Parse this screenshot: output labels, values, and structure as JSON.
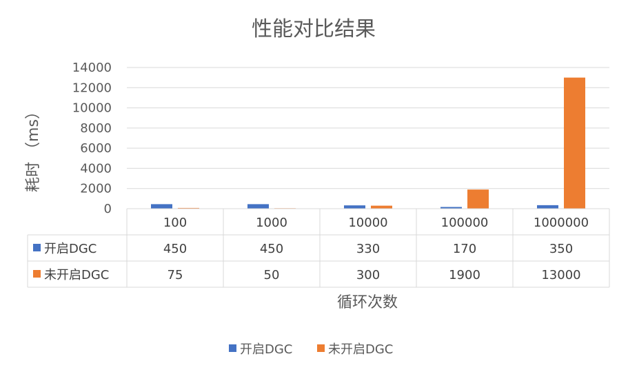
{
  "colors": {
    "series1": "#4472C4",
    "series2": "#ED7D31",
    "grid": "#d9d9d9",
    "text": "#595959"
  },
  "chart_data": {
    "type": "bar",
    "title": "性能对比结果",
    "xlabel": "循环次数",
    "ylabel": "耗时 （ms）",
    "ylim": [
      0,
      14000
    ],
    "yticks": [
      "0",
      "2000",
      "4000",
      "6000",
      "8000",
      "10000",
      "12000",
      "14000"
    ],
    "categories": [
      "100",
      "1000",
      "10000",
      "100000",
      "1000000"
    ],
    "series": [
      {
        "name": "开启DGC",
        "values": [
          450,
          450,
          330,
          170,
          350
        ]
      },
      {
        "name": "未开启DGC",
        "values": [
          75,
          50,
          300,
          1900,
          13000
        ]
      }
    ],
    "grid": true,
    "legend": "bottom",
    "data_table": true
  }
}
